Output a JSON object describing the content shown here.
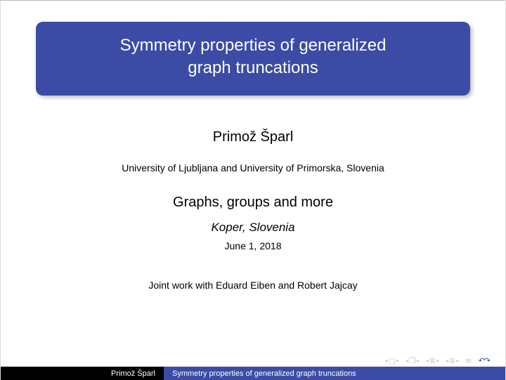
{
  "title_line1": "Symmetry properties of generalized",
  "title_line2": "graph truncations",
  "author": "Primož Šparl",
  "affiliation": "University of Ljubljana and University of Primorska, Slovenia",
  "subtitle": "Graphs, groups and more",
  "location": "Koper, Slovenia",
  "date": "June 1, 2018",
  "joint_work": "Joint work with Eduard Eiben and Robert Jajcay",
  "footer": {
    "author": "Primož Šparl",
    "title": "Symmetry properties of generalized  graph truncations"
  },
  "colors": {
    "title_bg": "#3b4ba6",
    "title_fg": "#ffffff",
    "page_bg": "#ffffff",
    "footer_bg": "#000000",
    "nav_faded": "#c7c7d9",
    "nav_accent": "#3b4ba6"
  }
}
